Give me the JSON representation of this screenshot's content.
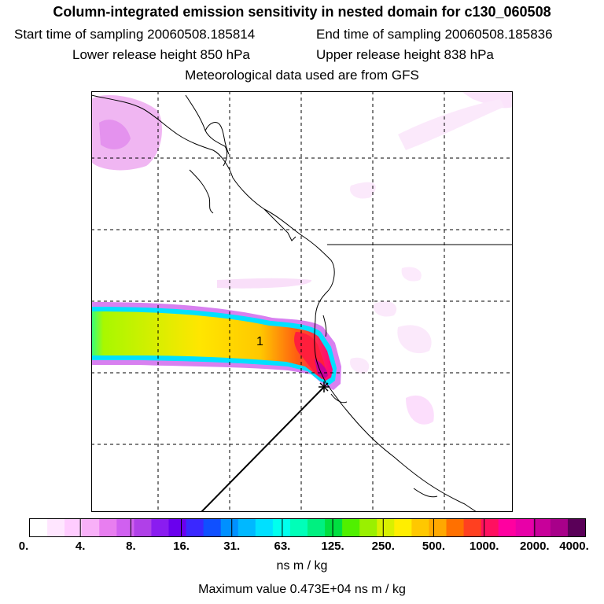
{
  "header": {
    "title": "Column-integrated emission sensitivity in nested domain for c130_060508",
    "start_label": "Start time of sampling 20060508.185814",
    "end_label": "End time of sampling 20060508.185836",
    "lower_label": "Lower release height  850 hPa",
    "upper_label": "Upper release height  838 hPa",
    "met_label": "Meteorological data used are from GFS"
  },
  "map": {
    "plume_label": "1",
    "release_marker": "star-marker-icon"
  },
  "colorbar": {
    "ticks": [
      "0.",
      "4.",
      "8.",
      "16.",
      "31.",
      "63.",
      "125.",
      "250.",
      "500.",
      "1000.",
      "2000.",
      "4000."
    ],
    "colors": [
      "#ffffff",
      "#ffe6ff",
      "#ffccff",
      "#f8b0f8",
      "#e87ef0",
      "#d060f0",
      "#b040e8",
      "#8a1cf0",
      "#6a00ee",
      "#3a28ff",
      "#1050ff",
      "#0090ff",
      "#00b8ff",
      "#00e0ff",
      "#00ffee",
      "#00ffb8",
      "#00f080",
      "#00e040",
      "#50f000",
      "#9af000",
      "#d8f000",
      "#ffee00",
      "#ffc800",
      "#ffa800",
      "#ff7000",
      "#ff4020",
      "#ff1060",
      "#ff00a0",
      "#e800a8",
      "#c8009a",
      "#a8008a",
      "#5a0058"
    ],
    "unit": "ns m / kg",
    "max_value": "Maximum value  0.473E+04 ns m / kg"
  }
}
